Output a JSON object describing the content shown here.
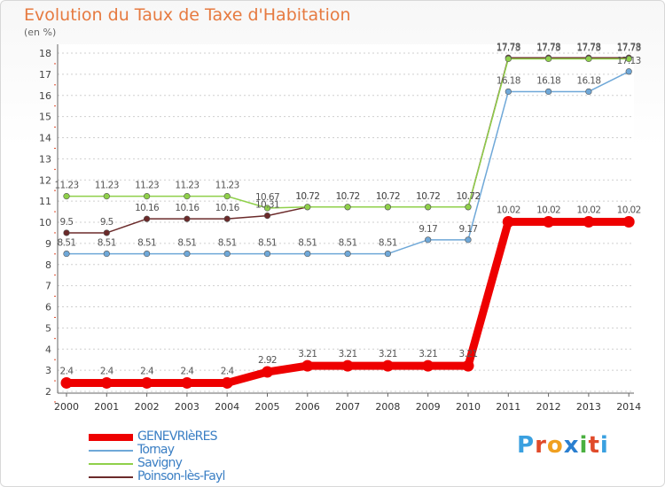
{
  "title": "Evolution du Taux de Taxe d'Habitation",
  "subtitle": "(en %)",
  "logo": {
    "text": "Proxiti",
    "letters": [
      "P",
      "r",
      "o",
      "x",
      "i",
      "t",
      "i"
    ],
    "colors": [
      "#3aa0e0",
      "#e04a2a",
      "#f0a020",
      "#2a7fd0",
      "#4ab040",
      "#e04a2a",
      "#3aa0e0"
    ]
  },
  "chart_data": {
    "type": "line",
    "x": [
      "2000",
      "2001",
      "2002",
      "2003",
      "2004",
      "2005",
      "2006",
      "2007",
      "2008",
      "2009",
      "2010",
      "2011",
      "2012",
      "2013",
      "2014"
    ],
    "ylim": [
      2,
      18
    ],
    "yticks": [
      2,
      3,
      4,
      5,
      6,
      7,
      8,
      9,
      10,
      11,
      12,
      13,
      14,
      15,
      16,
      17,
      18
    ],
    "grid": "horizontal-dashed",
    "legend_position": "bottom-left",
    "series": [
      {
        "name": "GENEVRIèRES",
        "color": "#ee0000",
        "values": [
          2.4,
          2.4,
          2.4,
          2.4,
          2.4,
          2.92,
          3.21,
          3.21,
          3.21,
          3.21,
          3.21,
          10.02,
          10.02,
          10.02,
          10.02
        ],
        "labels": [
          "2.4",
          "2.4",
          "2.4",
          "2.4",
          "2.4",
          "2.92",
          "3.21",
          "3.21",
          "3.21",
          "3.21",
          "3.21",
          "10.02",
          "10.02",
          "10.02",
          "10.02"
        ]
      },
      {
        "name": "Tornay",
        "color": "#6fa8d8",
        "values": [
          8.51,
          8.51,
          8.51,
          8.51,
          8.51,
          8.51,
          8.51,
          8.51,
          8.51,
          9.17,
          9.17,
          16.18,
          16.18,
          16.18,
          17.13
        ],
        "labels": [
          "8.51",
          "8.51",
          "8.51",
          "8.51",
          "8.51",
          "8.51",
          "8.51",
          "8.51",
          "8.51",
          "9.17",
          "9.17",
          "16.18",
          "16.18",
          "16.18",
          "17.13"
        ]
      },
      {
        "name": "Savigny",
        "color": "#8fd04a",
        "values": [
          11.23,
          11.23,
          11.23,
          11.23,
          11.23,
          10.67,
          10.72,
          10.72,
          10.72,
          10.72,
          10.72,
          17.73,
          17.73,
          17.73,
          17.73
        ],
        "labels": [
          "11.23",
          "11.23",
          "11.23",
          "11.23",
          "11.23",
          "10.67",
          "10.72",
          "10.72",
          "10.72",
          "10.72",
          "10.72",
          "17.73",
          "17.73",
          "17.73",
          "17.73"
        ]
      },
      {
        "name": "Poinson-lès-Fayl",
        "color": "#6b2a2a",
        "values": [
          9.5,
          9.5,
          10.16,
          10.16,
          10.16,
          10.31,
          10.72,
          10.72,
          10.72,
          10.72,
          10.72,
          17.78,
          17.78,
          17.78,
          17.78
        ],
        "labels": [
          "9.5",
          "9.5",
          "10.16",
          "10.16",
          "10.16",
          "10.31",
          "10.72",
          "10.72",
          "10.72",
          "10.72",
          "10.72",
          "17.78",
          "17.78",
          "17.78",
          "17.78"
        ]
      }
    ]
  }
}
